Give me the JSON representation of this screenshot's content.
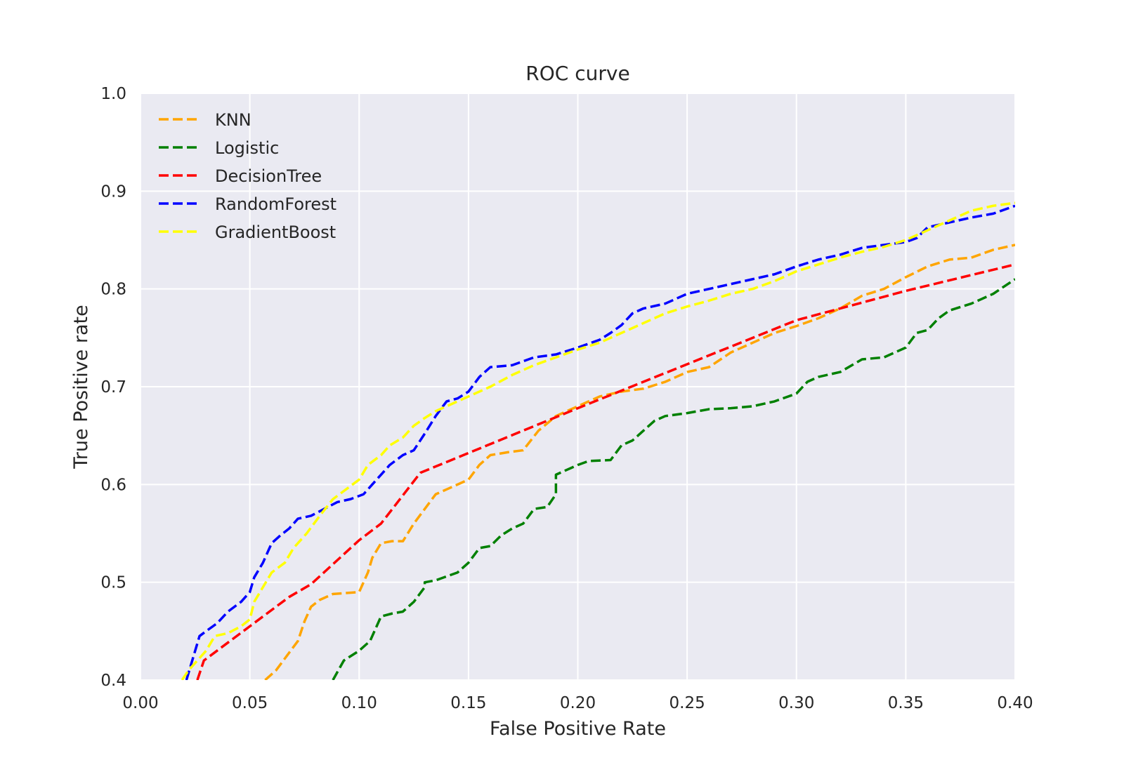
{
  "chart_data": {
    "type": "line",
    "title": "ROC curve",
    "xlabel": "False Positive Rate",
    "ylabel": "True Positive rate",
    "xlim": [
      0.0,
      0.4
    ],
    "ylim": [
      0.4,
      1.0
    ],
    "x_ticks": [
      "0.00",
      "0.05",
      "0.10",
      "0.15",
      "0.20",
      "0.25",
      "0.30",
      "0.35",
      "0.40"
    ],
    "y_ticks": [
      "0.4",
      "0.5",
      "0.6",
      "0.7",
      "0.8",
      "0.9",
      "1.0"
    ],
    "grid": true,
    "legend_position": "top-left",
    "background": "#eaeaf2",
    "series": [
      {
        "name": "KNN",
        "color": "#ffa500",
        "x": [
          0.057,
          0.062,
          0.067,
          0.072,
          0.075,
          0.078,
          0.082,
          0.088,
          0.1,
          0.104,
          0.106,
          0.11,
          0.115,
          0.12,
          0.125,
          0.13,
          0.135,
          0.14,
          0.15,
          0.155,
          0.16,
          0.168,
          0.175,
          0.182,
          0.19,
          0.2,
          0.21,
          0.22,
          0.23,
          0.24,
          0.25,
          0.26,
          0.27,
          0.28,
          0.29,
          0.3,
          0.31,
          0.32,
          0.33,
          0.34,
          0.35,
          0.36,
          0.37,
          0.38,
          0.39,
          0.4
        ],
        "y": [
          0.4,
          0.41,
          0.425,
          0.44,
          0.46,
          0.475,
          0.482,
          0.488,
          0.49,
          0.51,
          0.525,
          0.54,
          0.542,
          0.542,
          0.56,
          0.575,
          0.59,
          0.595,
          0.605,
          0.62,
          0.63,
          0.633,
          0.635,
          0.655,
          0.67,
          0.68,
          0.69,
          0.695,
          0.698,
          0.705,
          0.715,
          0.72,
          0.735,
          0.745,
          0.755,
          0.762,
          0.77,
          0.78,
          0.793,
          0.8,
          0.812,
          0.823,
          0.83,
          0.832,
          0.84,
          0.845
        ]
      },
      {
        "name": "Logistic",
        "color": "#008000",
        "x": [
          0.088,
          0.093,
          0.1,
          0.105,
          0.108,
          0.11,
          0.115,
          0.12,
          0.125,
          0.13,
          0.13,
          0.135,
          0.145,
          0.15,
          0.155,
          0.16,
          0.165,
          0.17,
          0.175,
          0.18,
          0.186,
          0.19,
          0.19,
          0.2,
          0.205,
          0.215,
          0.22,
          0.225,
          0.23,
          0.235,
          0.24,
          0.25,
          0.26,
          0.27,
          0.28,
          0.29,
          0.3,
          0.305,
          0.31,
          0.32,
          0.33,
          0.34,
          0.35,
          0.355,
          0.36,
          0.365,
          0.37,
          0.38,
          0.39,
          0.4
        ],
        "y": [
          0.4,
          0.42,
          0.43,
          0.44,
          0.455,
          0.465,
          0.468,
          0.47,
          0.48,
          0.495,
          0.5,
          0.502,
          0.51,
          0.52,
          0.535,
          0.537,
          0.548,
          0.555,
          0.56,
          0.575,
          0.577,
          0.59,
          0.61,
          0.62,
          0.624,
          0.625,
          0.64,
          0.645,
          0.655,
          0.665,
          0.67,
          0.673,
          0.677,
          0.678,
          0.68,
          0.685,
          0.693,
          0.705,
          0.71,
          0.715,
          0.728,
          0.73,
          0.74,
          0.755,
          0.758,
          0.77,
          0.778,
          0.785,
          0.795,
          0.81
        ]
      },
      {
        "name": "DecisionTree",
        "color": "#ff0000",
        "x": [
          0.026,
          0.029,
          0.032,
          0.05,
          0.068,
          0.078,
          0.1,
          0.11,
          0.128,
          0.2,
          0.3,
          0.35,
          0.4
        ],
        "y": [
          0.4,
          0.42,
          0.425,
          0.455,
          0.485,
          0.498,
          0.543,
          0.56,
          0.612,
          0.678,
          0.768,
          0.798,
          0.825
        ]
      },
      {
        "name": "RandomForest",
        "color": "#0000ff",
        "x": [
          0.021,
          0.025,
          0.027,
          0.03,
          0.035,
          0.04,
          0.046,
          0.05,
          0.052,
          0.056,
          0.06,
          0.064,
          0.068,
          0.072,
          0.078,
          0.084,
          0.09,
          0.096,
          0.102,
          0.106,
          0.11,
          0.114,
          0.12,
          0.125,
          0.13,
          0.135,
          0.14,
          0.145,
          0.15,
          0.155,
          0.16,
          0.17,
          0.18,
          0.19,
          0.2,
          0.21,
          0.215,
          0.22,
          0.225,
          0.23,
          0.24,
          0.25,
          0.26,
          0.27,
          0.28,
          0.29,
          0.3,
          0.31,
          0.32,
          0.33,
          0.34,
          0.35,
          0.355,
          0.36,
          0.37,
          0.38,
          0.39,
          0.4
        ],
        "y": [
          0.4,
          0.43,
          0.445,
          0.45,
          0.458,
          0.47,
          0.48,
          0.49,
          0.505,
          0.52,
          0.54,
          0.548,
          0.555,
          0.565,
          0.568,
          0.575,
          0.582,
          0.585,
          0.59,
          0.6,
          0.61,
          0.62,
          0.63,
          0.635,
          0.652,
          0.67,
          0.685,
          0.688,
          0.695,
          0.71,
          0.72,
          0.722,
          0.73,
          0.733,
          0.74,
          0.748,
          0.755,
          0.763,
          0.775,
          0.78,
          0.785,
          0.795,
          0.8,
          0.805,
          0.81,
          0.815,
          0.823,
          0.83,
          0.835,
          0.842,
          0.845,
          0.848,
          0.852,
          0.863,
          0.868,
          0.873,
          0.877,
          0.885
        ]
      },
      {
        "name": "GradientBoost",
        "color": "#ffff00",
        "x": [
          0.019,
          0.022,
          0.026,
          0.03,
          0.034,
          0.04,
          0.046,
          0.05,
          0.052,
          0.056,
          0.06,
          0.066,
          0.07,
          0.076,
          0.082,
          0.088,
          0.094,
          0.1,
          0.104,
          0.11,
          0.114,
          0.12,
          0.125,
          0.13,
          0.135,
          0.14,
          0.15,
          0.16,
          0.17,
          0.18,
          0.19,
          0.2,
          0.21,
          0.22,
          0.23,
          0.24,
          0.25,
          0.26,
          0.27,
          0.28,
          0.29,
          0.3,
          0.31,
          0.32,
          0.33,
          0.34,
          0.35,
          0.36,
          0.37,
          0.38,
          0.39,
          0.4
        ],
        "y": [
          0.4,
          0.41,
          0.42,
          0.43,
          0.445,
          0.448,
          0.455,
          0.462,
          0.48,
          0.495,
          0.51,
          0.52,
          0.535,
          0.55,
          0.568,
          0.585,
          0.595,
          0.605,
          0.62,
          0.63,
          0.64,
          0.648,
          0.66,
          0.668,
          0.675,
          0.68,
          0.69,
          0.7,
          0.712,
          0.722,
          0.73,
          0.738,
          0.745,
          0.755,
          0.765,
          0.775,
          0.782,
          0.788,
          0.795,
          0.8,
          0.808,
          0.818,
          0.825,
          0.832,
          0.838,
          0.843,
          0.85,
          0.86,
          0.87,
          0.88,
          0.885,
          0.888
        ]
      }
    ]
  }
}
